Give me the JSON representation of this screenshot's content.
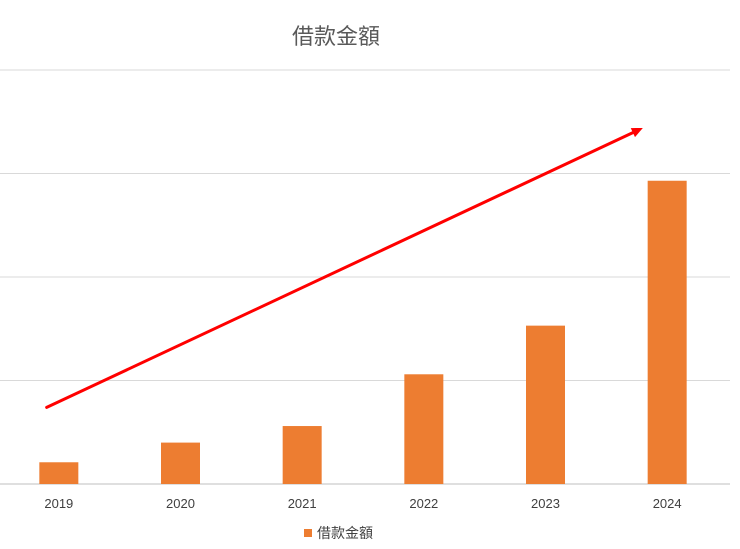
{
  "chart_data": {
    "type": "bar",
    "title": "借款金額",
    "categories": [
      "2019",
      "2020",
      "2021",
      "2022",
      "2023",
      "2024"
    ],
    "series": [
      {
        "name": "借款金額",
        "values": [
          0.21,
          0.4,
          0.56,
          1.06,
          1.53,
          2.93
        ],
        "color": "#ED7D31"
      }
    ],
    "ylim": [
      0,
      4
    ],
    "y_ticks_shown": false,
    "grid": true,
    "legend_position": "bottom",
    "annotation": {
      "type": "trend-arrow",
      "color": "#FF0000",
      "from": {
        "category_index": -0.1,
        "value": 0.74
      },
      "to": {
        "category_index": 4.8,
        "value": 3.44
      }
    }
  },
  "colors": {
    "bar": "#ED7D31",
    "arrow": "#FF0000",
    "grid": "#D9D9D9",
    "axis": "#BFBFBF"
  }
}
